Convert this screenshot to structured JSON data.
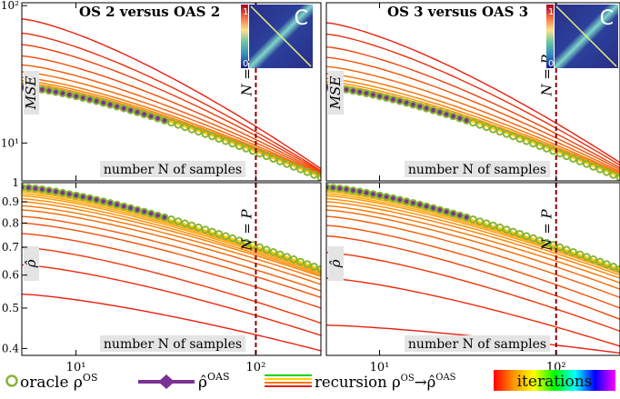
{
  "figure": {
    "x_axis_label": "number N of samples",
    "np_label": "N = P"
  },
  "chart_data": [
    {
      "type": "line",
      "panel": "top-left",
      "title": "OS 2 versus OAS 2",
      "ylabel": "MSE",
      "yscale": "log",
      "xscale": "log",
      "xlim": [
        5,
        230
      ],
      "ylim": [
        5.3,
        105
      ],
      "x_ticks": [
        {
          "value": 10,
          "label": "10¹"
        },
        {
          "value": 100,
          "label": "10²"
        }
      ],
      "y_ticks": [
        {
          "value": 10,
          "label": "10¹"
        },
        {
          "value": 100,
          "label": "10²"
        }
      ],
      "vline_x": 100,
      "oracle_start": 25.5,
      "oracle_end": 5.6,
      "recursion_curves": [
        {
          "y0": 80,
          "y1": 6.5
        },
        {
          "y0": 63,
          "y1": 6.3
        },
        {
          "y0": 52,
          "y1": 6.2
        },
        {
          "y0": 43,
          "y1": 6.1
        },
        {
          "y0": 37,
          "y1": 6.0
        },
        {
          "y0": 33,
          "y1": 5.9
        },
        {
          "y0": 30,
          "y1": 5.85
        },
        {
          "y0": 28.5,
          "y1": 5.8
        },
        {
          "y0": 27.5,
          "y1": 5.75
        },
        {
          "y0": 26.8,
          "y1": 5.7
        },
        {
          "y0": 26.3,
          "y1": 5.68
        },
        {
          "y0": 26,
          "y1": 5.66
        },
        {
          "y0": 25.8,
          "y1": 5.64
        },
        {
          "y0": 25.6,
          "y1": 5.62
        }
      ],
      "inset": {
        "label": "C",
        "cbar_max": "1",
        "cbar_min": "0"
      }
    },
    {
      "type": "line",
      "panel": "top-right",
      "title": "OS 3 versus OAS 3",
      "ylabel": "MSE",
      "yscale": "log",
      "xscale": "log",
      "xlim": [
        5,
        230
      ],
      "ylim": [
        5.3,
        105
      ],
      "x_ticks": [
        {
          "value": 10,
          "label": "10¹"
        },
        {
          "value": 100,
          "label": "10²"
        }
      ],
      "y_ticks": [],
      "vline_x": 100,
      "oracle_start": 25.5,
      "oracle_end": 5.6,
      "recursion_curves": [
        {
          "y0": 75,
          "y1": 7.2
        },
        {
          "y0": 62,
          "y1": 6.9
        },
        {
          "y0": 50,
          "y1": 6.6
        },
        {
          "y0": 42,
          "y1": 6.4
        },
        {
          "y0": 36,
          "y1": 6.2
        },
        {
          "y0": 32,
          "y1": 6.05
        },
        {
          "y0": 29.5,
          "y1": 5.95
        },
        {
          "y0": 28,
          "y1": 5.85
        },
        {
          "y0": 27,
          "y1": 5.78
        },
        {
          "y0": 26.5,
          "y1": 5.72
        },
        {
          "y0": 26.1,
          "y1": 5.68
        },
        {
          "y0": 25.8,
          "y1": 5.65
        }
      ],
      "inset": {
        "label": "C",
        "cbar_max": "1",
        "cbar_min": "0"
      }
    },
    {
      "type": "line",
      "panel": "bottom-left",
      "title": "",
      "ylabel": "ρ̂",
      "yscale": "log",
      "xscale": "log",
      "xlim": [
        5,
        230
      ],
      "ylim": [
        0.385,
        1.0
      ],
      "x_ticks": [
        {
          "value": 10,
          "label": "10¹"
        },
        {
          "value": 100,
          "label": "10²"
        }
      ],
      "y_ticks": [
        {
          "value": 0.4,
          "label": "0.4"
        },
        {
          "value": 0.5,
          "label": "0.5"
        },
        {
          "value": 0.6,
          "label": "0.6"
        },
        {
          "value": 0.7,
          "label": "0.7"
        },
        {
          "value": 0.8,
          "label": "0.8"
        },
        {
          "value": 0.9,
          "label": "0.9"
        },
        {
          "value": 1.0,
          "label": "1"
        }
      ],
      "vline_x": 100,
      "oracle_start": 0.975,
      "oracle_end": 0.62,
      "recursion_curves": [
        {
          "y0": 0.54,
          "y1": 0.395
        },
        {
          "y0": 0.635,
          "y1": 0.43
        },
        {
          "y0": 0.7,
          "y1": 0.46
        },
        {
          "y0": 0.755,
          "y1": 0.5
        },
        {
          "y0": 0.8,
          "y1": 0.53
        },
        {
          "y0": 0.83,
          "y1": 0.55
        },
        {
          "y0": 0.86,
          "y1": 0.57
        },
        {
          "y0": 0.88,
          "y1": 0.585
        },
        {
          "y0": 0.9,
          "y1": 0.595
        },
        {
          "y0": 0.915,
          "y1": 0.6
        },
        {
          "y0": 0.93,
          "y1": 0.605
        },
        {
          "y0": 0.94,
          "y1": 0.61
        },
        {
          "y0": 0.95,
          "y1": 0.613
        },
        {
          "y0": 0.958,
          "y1": 0.616
        },
        {
          "y0": 0.965,
          "y1": 0.618
        },
        {
          "y0": 0.97,
          "y1": 0.62
        }
      ]
    },
    {
      "type": "line",
      "panel": "bottom-right",
      "title": "",
      "ylabel": "ρ̂",
      "yscale": "log",
      "xscale": "log",
      "xlim": [
        5,
        230
      ],
      "ylim": [
        0.385,
        1.0
      ],
      "x_ticks": [
        {
          "value": 10,
          "label": "10¹"
        },
        {
          "value": 100,
          "label": "10²"
        }
      ],
      "y_ticks": [],
      "vline_x": 100,
      "oracle_start": 0.975,
      "oracle_end": 0.62,
      "recursion_curves": [
        {
          "y0": 0.455,
          "y1": 0.39
        },
        {
          "y0": 0.59,
          "y1": 0.405
        },
        {
          "y0": 0.68,
          "y1": 0.44
        },
        {
          "y0": 0.745,
          "y1": 0.47
        },
        {
          "y0": 0.79,
          "y1": 0.5
        },
        {
          "y0": 0.83,
          "y1": 0.53
        },
        {
          "y0": 0.86,
          "y1": 0.555
        },
        {
          "y0": 0.88,
          "y1": 0.575
        },
        {
          "y0": 0.9,
          "y1": 0.59
        },
        {
          "y0": 0.915,
          "y1": 0.6
        },
        {
          "y0": 0.93,
          "y1": 0.607
        },
        {
          "y0": 0.94,
          "y1": 0.612
        },
        {
          "y0": 0.95,
          "y1": 0.615
        },
        {
          "y0": 0.958,
          "y1": 0.617
        },
        {
          "y0": 0.965,
          "y1": 0.619
        },
        {
          "y0": 0.97,
          "y1": 0.62
        }
      ]
    }
  ],
  "legend": {
    "oracle_label": "oracle ρ",
    "oracle_sup": "OS",
    "oas_label": "ρ̂",
    "oas_sup": "OAS",
    "recursion_label": "recursion ρ",
    "recursion_sup1": "OS",
    "recursion_arrow": "→",
    "recursion_mid": "ρ̂",
    "recursion_sup2": "OAS",
    "iterations_label": "iterations"
  },
  "colors": {
    "oracle": "#8ab437",
    "oas": "#7b3294",
    "recursion_early": "#e8200f",
    "recursion_late": "#ffd000",
    "vline": "#8b0000"
  }
}
